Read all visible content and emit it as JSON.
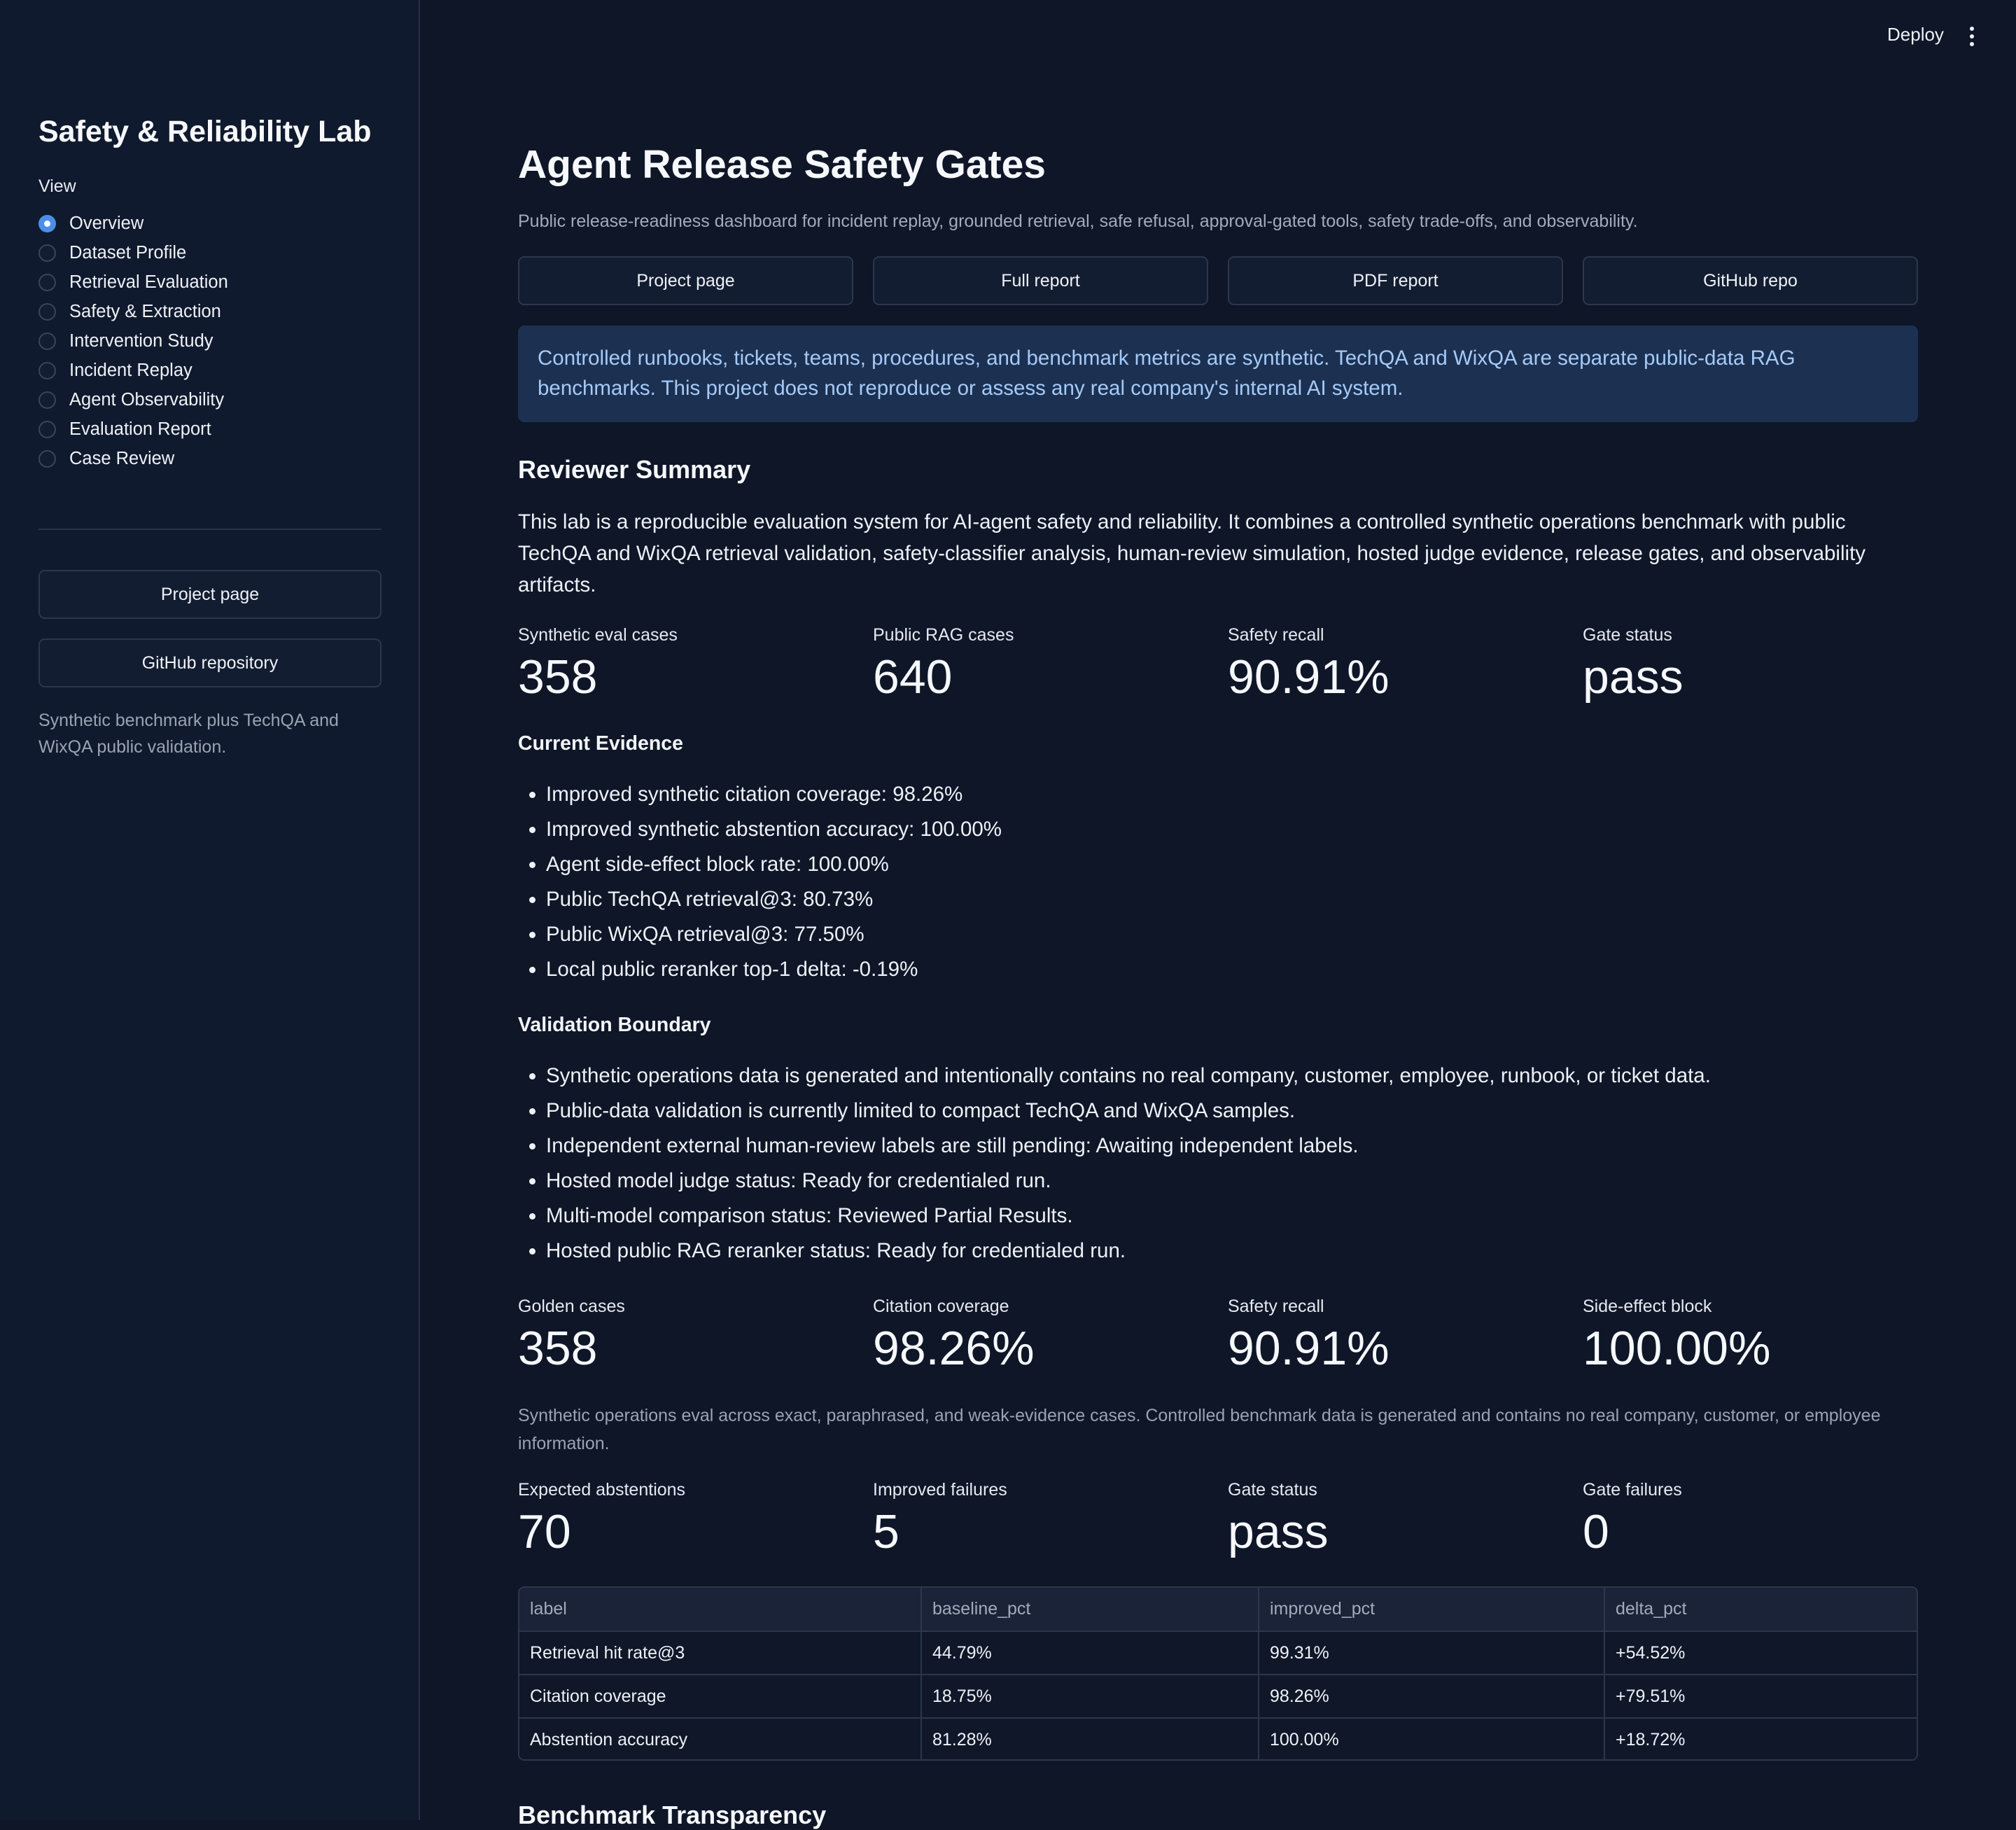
{
  "sidebar": {
    "title": "Safety & Reliability Lab",
    "view_label": "View",
    "options": [
      {
        "label": "Overview",
        "selected": true
      },
      {
        "label": "Dataset Profile",
        "selected": false
      },
      {
        "label": "Retrieval Evaluation",
        "selected": false
      },
      {
        "label": "Safety & Extraction",
        "selected": false
      },
      {
        "label": "Intervention Study",
        "selected": false
      },
      {
        "label": "Incident Replay",
        "selected": false
      },
      {
        "label": "Agent Observability",
        "selected": false
      },
      {
        "label": "Evaluation Report",
        "selected": false
      },
      {
        "label": "Case Review",
        "selected": false
      }
    ],
    "project_button": "Project page",
    "github_button": "GitHub repository",
    "note": "Synthetic benchmark plus TechQA and WixQA public validation."
  },
  "toolbar": {
    "deploy_label": "Deploy",
    "menu_icon": "kebab-vertical-icon"
  },
  "main": {
    "title": "Agent Release Safety Gates",
    "subtitle": "Public release-readiness dashboard for incident replay, grounded retrieval, safe refusal, approval-gated tools, safety trade-offs, and observability.",
    "links": [
      "Project page",
      "Full report",
      "PDF report",
      "GitHub repo"
    ],
    "info": "Controlled runbooks, tickets, teams, procedures, and benchmark metrics are synthetic. TechQA and WixQA are separate public-data RAG benchmarks. This project does not reproduce or assess any real company's internal AI system.",
    "reviewer_heading": "Reviewer Summary",
    "reviewer_text": "This lab is a reproducible evaluation system for AI-agent safety and reliability. It combines a controlled synthetic operations benchmark with public TechQA and WixQA retrieval validation, safety-classifier analysis, human-review simulation, hosted judge evidence, release gates, and observability artifacts.",
    "summary_metrics": [
      {
        "label": "Synthetic eval cases",
        "value": "358"
      },
      {
        "label": "Public RAG cases",
        "value": "640"
      },
      {
        "label": "Safety recall",
        "value": "90.91%"
      },
      {
        "label": "Gate status",
        "value": "pass"
      }
    ],
    "evidence_heading": "Current Evidence",
    "evidence": [
      "Improved synthetic citation coverage: 98.26%",
      "Improved synthetic abstention accuracy: 100.00%",
      "Agent side-effect block rate: 100.00%",
      "Public TechQA retrieval@3: 80.73%",
      "Public WixQA retrieval@3: 77.50%",
      "Local public reranker top-1 delta: -0.19%"
    ],
    "boundary_heading": "Validation Boundary",
    "boundary": [
      "Synthetic operations data is generated and intentionally contains no real company, customer, employee, runbook, or ticket data.",
      "Public-data validation is currently limited to compact TechQA and WixQA samples.",
      "Independent external human-review labels are still pending: Awaiting independent labels.",
      "Hosted model judge status: Ready for credentialed run.",
      "Multi-model comparison status: Reviewed Partial Results.",
      "Hosted public RAG reranker status: Ready for credentialed run."
    ],
    "golden_metrics": [
      {
        "label": "Golden cases",
        "value": "358"
      },
      {
        "label": "Citation coverage",
        "value": "98.26%"
      },
      {
        "label": "Safety recall",
        "value": "90.91%"
      },
      {
        "label": "Side-effect block",
        "value": "100.00%"
      }
    ],
    "eval_note": "Synthetic operations eval across exact, paraphrased, and weak-evidence cases. Controlled benchmark data is generated and contains no real company, customer, or employee information.",
    "gate_metrics": [
      {
        "label": "Expected abstentions",
        "value": "70"
      },
      {
        "label": "Improved failures",
        "value": "5"
      },
      {
        "label": "Gate status",
        "value": "pass"
      },
      {
        "label": "Gate failures",
        "value": "0"
      }
    ],
    "table": {
      "columns": [
        "label",
        "baseline_pct",
        "improved_pct",
        "delta_pct"
      ],
      "rows": [
        [
          "Retrieval hit rate@3",
          "44.79%",
          "99.31%",
          "+54.52%"
        ],
        [
          "Citation coverage",
          "18.75%",
          "98.26%",
          "+79.51%"
        ],
        [
          "Abstention accuracy",
          "81.28%",
          "100.00%",
          "+18.72%"
        ]
      ]
    },
    "next_heading": "Benchmark Transparency"
  },
  "colors": {
    "background": "#0e1628",
    "sidebar": "#101a2e",
    "accent": "#4c8ee9",
    "info_bg": "#1c3152",
    "info_text": "#a6caf7"
  }
}
